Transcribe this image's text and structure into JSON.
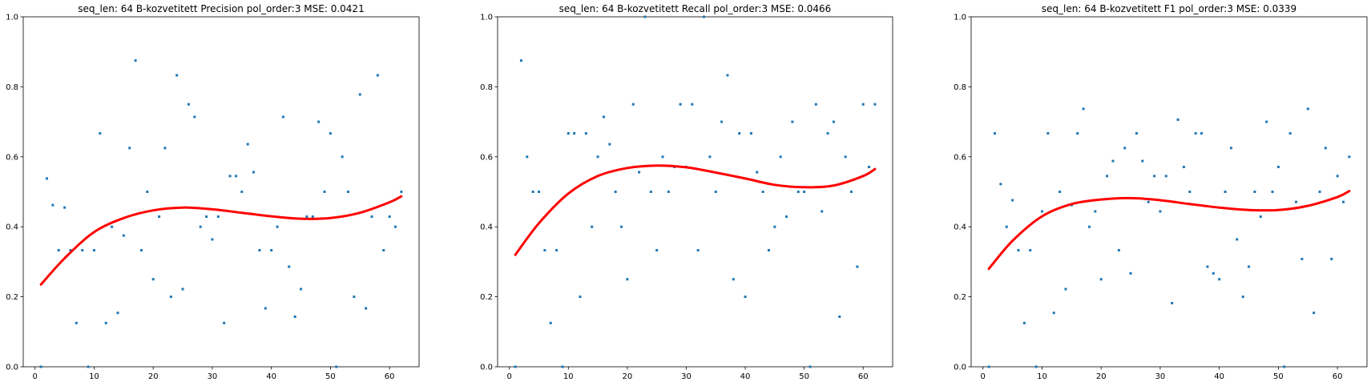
{
  "colors": {
    "scatter": "#1f77b4",
    "fit": "#ff0000",
    "axes": "#000000",
    "background": "#ffffff"
  },
  "chart_data": [
    {
      "type": "scatter",
      "title": "seq_len: 64    B-kozvetitett   Precision   pol_order:3   MSE: 0.0421",
      "xlabel": "",
      "ylabel": "",
      "xlim": [
        -2,
        65
      ],
      "ylim": [
        0,
        1.0
      ],
      "xticks": [
        0,
        10,
        20,
        30,
        40,
        50,
        60
      ],
      "yticks": [
        0.0,
        0.2,
        0.4,
        0.6,
        0.8,
        1.0
      ],
      "ytick_labels": [
        "0.0",
        "0.2",
        "0.4",
        "0.6",
        "0.8",
        "1.0"
      ],
      "grid": false,
      "x": [
        1,
        2,
        3,
        4,
        5,
        6,
        7,
        8,
        9,
        10,
        11,
        12,
        13,
        14,
        15,
        16,
        17,
        18,
        19,
        20,
        21,
        22,
        23,
        24,
        25,
        26,
        27,
        28,
        29,
        30,
        31,
        32,
        33,
        34,
        35,
        36,
        37,
        38,
        39,
        40,
        41,
        42,
        43,
        44,
        45,
        46,
        47,
        48,
        49,
        50,
        51,
        52,
        53,
        54,
        55,
        56,
        57,
        58,
        59,
        60,
        61,
        62
      ],
      "y": [
        0.0,
        0.538,
        0.462,
        0.333,
        0.455,
        0.333,
        0.125,
        0.333,
        0.0,
        0.333,
        0.667,
        0.125,
        0.4,
        0.154,
        0.375,
        0.625,
        0.875,
        0.333,
        0.5,
        0.25,
        0.429,
        0.625,
        0.2,
        0.833,
        0.222,
        0.75,
        0.714,
        0.4,
        0.429,
        0.364,
        0.429,
        0.125,
        0.545,
        0.545,
        0.5,
        0.636,
        0.556,
        0.333,
        0.167,
        0.333,
        0.4,
        0.714,
        0.286,
        0.143,
        0.222,
        0.429,
        0.429,
        0.7,
        0.5,
        0.667,
        0.0,
        0.6,
        0.5,
        0.2,
        0.778,
        0.167,
        0.429,
        0.833,
        0.333,
        0.429,
        0.4,
        0.5
      ],
      "fit": {
        "name": "polynomial fit (order 3)",
        "x": [
          1,
          5,
          10,
          15,
          20,
          25,
          30,
          35,
          40,
          45,
          50,
          55,
          60,
          62
        ],
        "y": [
          0.235,
          0.31,
          0.385,
          0.425,
          0.447,
          0.455,
          0.45,
          0.44,
          0.43,
          0.423,
          0.425,
          0.44,
          0.47,
          0.487
        ]
      }
    },
    {
      "type": "scatter",
      "title": "seq_len: 64    B-kozvetitett   Recall   pol_order:3   MSE: 0.0466",
      "xlabel": "",
      "ylabel": "",
      "xlim": [
        -2,
        65
      ],
      "ylim": [
        0,
        1.0
      ],
      "xticks": [
        0,
        10,
        20,
        30,
        40,
        50,
        60
      ],
      "yticks": [
        0.0,
        0.2,
        0.4,
        0.6,
        0.8,
        1.0
      ],
      "ytick_labels": [
        "0.0",
        "0.2",
        "0.4",
        "0.6",
        "0.8",
        "1.0"
      ],
      "grid": false,
      "x": [
        1,
        2,
        3,
        4,
        5,
        6,
        7,
        8,
        9,
        10,
        11,
        12,
        13,
        14,
        15,
        16,
        17,
        18,
        19,
        20,
        21,
        22,
        23,
        24,
        25,
        26,
        27,
        28,
        29,
        30,
        31,
        32,
        33,
        34,
        35,
        36,
        37,
        38,
        39,
        40,
        41,
        42,
        43,
        44,
        45,
        46,
        47,
        48,
        49,
        50,
        51,
        52,
        53,
        54,
        55,
        56,
        57,
        58,
        59,
        60,
        61,
        62
      ],
      "y": [
        0.0,
        0.875,
        0.6,
        0.5,
        0.5,
        0.333,
        0.125,
        0.333,
        0.0,
        0.667,
        0.667,
        0.2,
        0.667,
        0.4,
        0.6,
        0.714,
        0.636,
        0.5,
        0.4,
        0.25,
        0.75,
        0.556,
        1.0,
        0.5,
        0.333,
        0.6,
        0.5,
        0.571,
        0.75,
        0.571,
        0.75,
        0.333,
        1.0,
        0.6,
        0.5,
        0.7,
        0.833,
        0.25,
        0.667,
        0.2,
        0.667,
        0.556,
        0.5,
        0.333,
        0.4,
        0.6,
        0.429,
        0.7,
        0.5,
        0.5,
        0.0,
        0.75,
        0.444,
        0.667,
        0.7,
        0.143,
        0.6,
        0.5,
        0.286,
        0.75,
        0.571,
        0.75
      ],
      "fit": {
        "name": "polynomial fit (order 3)",
        "x": [
          1,
          5,
          10,
          15,
          20,
          25,
          30,
          35,
          40,
          45,
          50,
          55,
          60,
          62
        ],
        "y": [
          0.32,
          0.41,
          0.495,
          0.545,
          0.568,
          0.575,
          0.57,
          0.555,
          0.538,
          0.52,
          0.513,
          0.518,
          0.545,
          0.565
        ]
      }
    },
    {
      "type": "scatter",
      "title": "seq_len: 64    B-kozvetitett   F1   pol_order:3   MSE: 0.0339",
      "xlabel": "",
      "ylabel": "",
      "xlim": [
        -2,
        65
      ],
      "ylim": [
        0,
        1.0
      ],
      "xticks": [
        0,
        10,
        20,
        30,
        40,
        50,
        60
      ],
      "yticks": [
        0.0,
        0.2,
        0.4,
        0.6,
        0.8,
        1.0
      ],
      "ytick_labels": [
        "0.0",
        "0.2",
        "0.4",
        "0.6",
        "0.8",
        "1.0"
      ],
      "grid": false,
      "x": [
        1,
        2,
        3,
        4,
        5,
        6,
        7,
        8,
        9,
        10,
        11,
        12,
        13,
        14,
        15,
        16,
        17,
        18,
        19,
        20,
        21,
        22,
        23,
        24,
        25,
        26,
        27,
        28,
        29,
        30,
        31,
        32,
        33,
        34,
        35,
        36,
        37,
        38,
        39,
        40,
        41,
        42,
        43,
        44,
        45,
        46,
        47,
        48,
        49,
        50,
        51,
        52,
        53,
        54,
        55,
        56,
        57,
        58,
        59,
        60,
        61,
        62
      ],
      "y": [
        0.0,
        0.667,
        0.522,
        0.4,
        0.476,
        0.333,
        0.125,
        0.333,
        0.0,
        0.444,
        0.667,
        0.154,
        0.5,
        0.222,
        0.462,
        0.667,
        0.737,
        0.4,
        0.444,
        0.25,
        0.545,
        0.588,
        0.333,
        0.625,
        0.267,
        0.667,
        0.588,
        0.471,
        0.545,
        0.444,
        0.545,
        0.182,
        0.706,
        0.571,
        0.5,
        0.667,
        0.667,
        0.286,
        0.267,
        0.25,
        0.5,
        0.625,
        0.364,
        0.2,
        0.286,
        0.5,
        0.429,
        0.7,
        0.5,
        0.571,
        0.0,
        0.667,
        0.471,
        0.308,
        0.737,
        0.154,
        0.5,
        0.625,
        0.308,
        0.545,
        0.471,
        0.6
      ],
      "fit": {
        "name": "polynomial fit (order 3)",
        "x": [
          1,
          5,
          10,
          15,
          20,
          25,
          30,
          35,
          40,
          45,
          50,
          55,
          60,
          62
        ],
        "y": [
          0.28,
          0.36,
          0.43,
          0.465,
          0.478,
          0.482,
          0.476,
          0.465,
          0.455,
          0.448,
          0.448,
          0.46,
          0.485,
          0.502
        ]
      }
    }
  ]
}
